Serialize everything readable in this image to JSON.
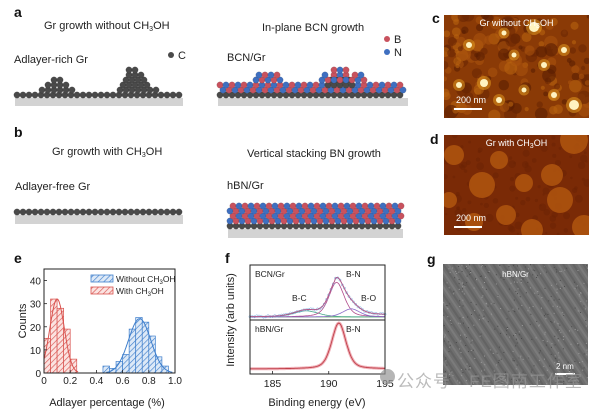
{
  "panels": {
    "a": {
      "label": "a",
      "title_left_pre": "Gr growth without CH",
      "title_left_sub": "3",
      "title_left_post": "OH",
      "caption_left": "Adlayer-rich Gr",
      "legend_c": "C",
      "title_right": "In-plane BCN growth",
      "caption_right": "BCN/Gr",
      "legend_b": "B",
      "legend_n": "N"
    },
    "b": {
      "label": "b",
      "title_left_pre": "Gr growth with CH",
      "title_left_sub": "3",
      "title_left_post": "OH",
      "caption_left": "Adlayer-free Gr",
      "title_right": "Vertical stacking BN growth",
      "caption_right": "hBN/Gr"
    },
    "c": {
      "label": "c",
      "title_pre": "Gr without  CH",
      "title_sub": "3",
      "title_post": "OH",
      "scale": "200 nm"
    },
    "d": {
      "label": "d",
      "title_pre": "Gr with  CH",
      "title_sub": "3",
      "title_post": "OH",
      "scale": "200 nm"
    },
    "e": {
      "label": "e"
    },
    "f": {
      "label": "f"
    },
    "g": {
      "label": "g",
      "title": "hBN/Gr",
      "scale": "2 nm"
    }
  },
  "colors": {
    "carbon": "#4a4a4a",
    "boron": "#c8525e",
    "nitrogen": "#3f6fc0",
    "substrate": "#d3d3d3",
    "hist_without": "#3f7fcc",
    "hist_with": "#d9534f"
  },
  "watermark": "公众号 · FE图南工作室",
  "chart_data": [
    {
      "id": "e",
      "type": "bar",
      "title": "",
      "xlabel": "Adlayer percentage (%)",
      "ylabel": "Counts",
      "xlim": [
        0,
        1.0
      ],
      "ylim": [
        0,
        45
      ],
      "xticks": [
        "0",
        "0.2",
        "0.4",
        "0.6",
        "0.8",
        "1.0"
      ],
      "xtick_values": [
        0,
        0.2,
        0.4,
        0.6,
        0.8,
        1.0
      ],
      "yticks": [
        "0",
        "10",
        "20",
        "30",
        "40"
      ],
      "ytick_values": [
        0,
        10,
        20,
        30,
        40
      ],
      "bin_width": 0.05,
      "legend_position": "top-right",
      "series": [
        {
          "name": "Without CH3OH",
          "legend_pre": "Without CH",
          "legend_sub": "3",
          "legend_post": "OH",
          "bin_starts": [
            0.45,
            0.5,
            0.55,
            0.6,
            0.65,
            0.7,
            0.75,
            0.8,
            0.85,
            0.9
          ],
          "values": [
            3,
            2,
            5,
            8,
            19,
            24,
            22,
            16,
            7,
            3
          ],
          "fit_mean": 0.73,
          "fit_sigma": 0.085,
          "fit_peak": 23.5
        },
        {
          "name": "With CH3OH",
          "legend_pre": "With CH",
          "legend_sub": "3",
          "legend_post": "OH",
          "bin_starts": [
            0,
            0.05,
            0.1,
            0.15,
            0.2
          ],
          "values": [
            15,
            32,
            28,
            19,
            6
          ],
          "fit_mean": 0.1,
          "fit_sigma": 0.055,
          "fit_peak": 32
        }
      ]
    },
    {
      "id": "f",
      "type": "line",
      "title": "",
      "xlabel": "Binding energy (eV)",
      "ylabel": "Intensity (arb units)",
      "xlim": [
        183,
        195
      ],
      "xticks": [
        "185",
        "190",
        "195"
      ],
      "xtick_values": [
        185,
        190,
        195
      ],
      "panels": [
        {
          "label": "BCN/Gr",
          "peaks": [
            {
              "name": "B-C",
              "center": 188.0,
              "fwhm": 2.6,
              "height": 0.15
            },
            {
              "name": "B-N",
              "center": 190.7,
              "fwhm": 1.6,
              "height": 0.85
            },
            {
              "name": "B-O",
              "center": 192.0,
              "fwhm": 1.8,
              "height": 0.2
            }
          ]
        },
        {
          "label": "hBN/Gr",
          "peaks": [
            {
              "name": "B-N",
              "center": 190.9,
              "fwhm": 1.5,
              "height": 1.0
            }
          ]
        }
      ]
    }
  ]
}
